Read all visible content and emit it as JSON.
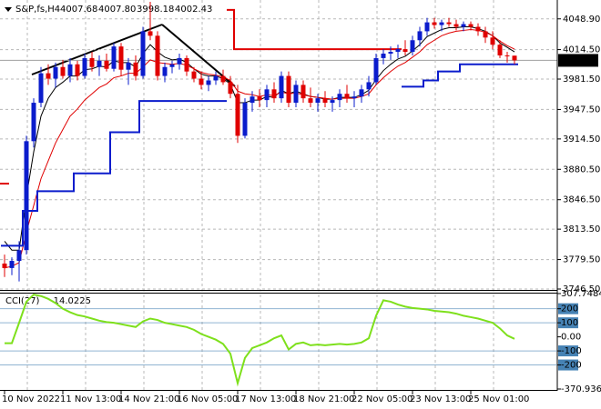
{
  "chart_data": [
    {
      "type": "candlestick",
      "title": "S&P,fs,H4",
      "ohlc_labels": [
        "4007.68",
        "4007.80",
        "3998.18",
        "4002.43"
      ],
      "categories": [
        "10 Nov 2022",
        null,
        null,
        null,
        null,
        null,
        null,
        null,
        "11 Nov 13:00",
        null,
        null,
        null,
        null,
        null,
        null,
        null,
        "14 Nov 21:00",
        null,
        null,
        null,
        null,
        null,
        null,
        null,
        "16 Nov 05:00",
        null,
        null,
        null,
        null,
        null,
        null,
        null,
        "17 Nov 13:00",
        null,
        null,
        null,
        null,
        null,
        null,
        null,
        "18 Nov 21:00",
        null,
        null,
        null,
        null,
        null,
        null,
        null,
        "22 Nov 05:00",
        null,
        null,
        null,
        null,
        null,
        null,
        null,
        "23 Nov 13:00",
        null,
        null,
        null,
        null,
        null,
        null,
        null,
        "25 Nov 01:00",
        null,
        null,
        null,
        null,
        null,
        null
      ],
      "open": [
        3775,
        3770,
        3778,
        3790,
        3912,
        3955,
        3988,
        3982,
        3995,
        3985,
        3998,
        3985,
        4005,
        3995,
        4002,
        3993,
        4018,
        3992,
        4000,
        3985,
        4035,
        4030,
        3985,
        3995,
        3998,
        4005,
        3990,
        3982,
        3975,
        3980,
        3985,
        3978,
        3965,
        3918,
        3955,
        3962,
        3958,
        3970,
        3960,
        3985,
        3955,
        3975,
        3960,
        3955,
        3960,
        3955,
        3958,
        3965,
        3960,
        3962,
        3970,
        3978,
        4005,
        4010,
        4012,
        4015,
        4012,
        4025,
        4035,
        4045,
        4042,
        4045,
        4043,
        4040,
        4043,
        4040,
        4035,
        4028,
        4020,
        4008,
        4007.68
      ],
      "high": [
        3785,
        3782,
        3800,
        3918,
        3960,
        3995,
        3998,
        4000,
        4003,
        4005,
        4002,
        4010,
        4012,
        4008,
        4010,
        4022,
        4022,
        4005,
        4008,
        4040,
        4068,
        4035,
        4000,
        4002,
        4010,
        4008,
        3995,
        3990,
        3985,
        3990,
        3992,
        3985,
        3975,
        3960,
        3968,
        3970,
        3975,
        3978,
        3990,
        3990,
        3980,
        3980,
        3972,
        3965,
        3968,
        3962,
        3970,
        3975,
        3968,
        3975,
        3985,
        4010,
        4015,
        4018,
        4020,
        4025,
        4030,
        4040,
        4050,
        4050,
        4048,
        4050,
        4048,
        4046,
        4046,
        4044,
        4040,
        4035,
        4025,
        4012,
        4007.8
      ],
      "low": [
        3760,
        3762,
        3755,
        3785,
        3905,
        3950,
        3975,
        3972,
        3982,
        3978,
        3980,
        3982,
        3990,
        3985,
        3990,
        3990,
        3985,
        3975,
        3980,
        3982,
        4025,
        3980,
        3978,
        3988,
        3992,
        3985,
        3978,
        3970,
        3968,
        3975,
        3975,
        3960,
        3910,
        3915,
        3945,
        3950,
        3950,
        3955,
        3955,
        3950,
        3950,
        3955,
        3950,
        3945,
        3950,
        3945,
        3950,
        3955,
        3950,
        3955,
        3962,
        3975,
        3998,
        4003,
        4005,
        4008,
        4008,
        4018,
        4030,
        4038,
        4035,
        4040,
        4036,
        4035,
        4036,
        4030,
        4022,
        4015,
        4005,
        4000,
        3998.18
      ],
      "close": [
        3770,
        3778,
        3790,
        3912,
        3955,
        3988,
        3982,
        3995,
        3985,
        3998,
        3985,
        4005,
        3995,
        4002,
        3993,
        4018,
        3992,
        4000,
        3985,
        4035,
        4030,
        3985,
        3995,
        3998,
        4005,
        3990,
        3982,
        3975,
        3980,
        3985,
        3978,
        3965,
        3918,
        3955,
        3962,
        3958,
        3970,
        3960,
        3985,
        3955,
        3975,
        3960,
        3955,
        3960,
        3955,
        3958,
        3965,
        3960,
        3962,
        3970,
        3978,
        4005,
        4010,
        4012,
        4015,
        4012,
        4025,
        4035,
        4045,
        4042,
        4045,
        4043,
        4040,
        4043,
        4040,
        4035,
        4028,
        4020,
        4008,
        4007.68,
        4002.43
      ],
      "up_color": "#0b1ccc",
      "down_color": "#e00000",
      "series": [
        {
          "color": "#000000",
          "width": 1,
          "values": [
            3800,
            3790,
            3790,
            3850,
            3900,
            3940,
            3960,
            3972,
            3978,
            3985,
            3985,
            3992,
            3993,
            3996,
            3995,
            4002,
            4000,
            4000,
            3995,
            4010,
            4020,
            4012,
            4006,
            4003,
            4004,
            4000,
            3993,
            3987,
            3985,
            3985,
            3982,
            3976,
            3955,
            3955,
            3958,
            3958,
            3962,
            3961,
            3969,
            3965,
            3968,
            3965,
            3962,
            3961,
            3959,
            3959,
            3961,
            3961,
            3961,
            3964,
            3969,
            3981,
            3991,
            3998,
            4004,
            4007,
            4013,
            4020,
            4029,
            4033,
            4037,
            4039,
            4039,
            4040,
            4040,
            4038,
            4035,
            4030,
            4022,
            4017,
            4012
          ]
        },
        {
          "color": "#e00000",
          "width": 1,
          "values": [
            3770,
            3772,
            3776,
            3810,
            3840,
            3870,
            3890,
            3910,
            3925,
            3940,
            3948,
            3958,
            3965,
            3972,
            3976,
            3983,
            3985,
            3988,
            3988,
            3995,
            4003,
            4000,
            3999,
            3998,
            3999,
            3997,
            3993,
            3989,
            3987,
            3986,
            3984,
            3980,
            3968,
            3965,
            3964,
            3962,
            3964,
            3963,
            3967,
            3965,
            3966,
            3964,
            3962,
            3961,
            3960,
            3959,
            3960,
            3960,
            3960,
            3962,
            3965,
            3975,
            3983,
            3990,
            3996,
            4000,
            4006,
            4012,
            4020,
            4025,
            4030,
            4033,
            4035,
            4036,
            4037,
            4036,
            4034,
            4030,
            4024,
            4019,
            4015
          ]
        },
        {
          "color": "#0b1ccc",
          "width": 2,
          "step": true,
          "values": [
            3795,
            3795,
            3795,
            3834,
            3834,
            3856,
            3856,
            3856,
            3856,
            3856,
            3876,
            3876,
            3876,
            3876,
            3876,
            3922,
            3922,
            3922,
            3922,
            3957,
            3957,
            3957,
            3957,
            3957,
            3957,
            3957,
            3957,
            3957,
            3957,
            3957,
            3957,
            null,
            null,
            null,
            null,
            null,
            null,
            null,
            null,
            null,
            null,
            null,
            null,
            null,
            null,
            null,
            null,
            null,
            null,
            null,
            null,
            null,
            null,
            null,
            null,
            3973,
            3973,
            3973,
            3980,
            3980,
            3990,
            3990,
            3990,
            3998,
            3998,
            3998,
            3998,
            3998,
            3998,
            3998,
            3998
          ]
        },
        {
          "color": "#e00000",
          "width": 2,
          "step": true,
          "values": [
            null,
            null,
            null,
            null,
            null,
            null,
            null,
            null,
            null,
            null,
            null,
            null,
            null,
            null,
            null,
            null,
            null,
            null,
            null,
            null,
            null,
            null,
            null,
            null,
            null,
            null,
            null,
            null,
            null,
            null,
            null,
            4059,
            4015,
            4015,
            4015,
            4015,
            4015,
            4015,
            4015,
            4015,
            4015,
            4015,
            4015,
            4015,
            4015,
            4015,
            4015,
            4015,
            4015,
            4015,
            4015,
            4015,
            4015,
            4015,
            4015,
            null,
            null,
            null,
            null,
            null,
            null,
            null,
            null,
            null,
            null,
            null,
            null,
            null,
            null,
            null,
            null
          ]
        }
      ],
      "ylim": [
        3746.5,
        4069
      ],
      "yticks": [
        {
          "value": 4048.9,
          "label": "4048.90"
        },
        {
          "value": 4014.5,
          "label": "4014.50"
        },
        {
          "value": 3981.5,
          "label": "3981.50"
        },
        {
          "value": 3947.5,
          "label": "3947.50"
        },
        {
          "value": 3914.5,
          "label": "3914.50"
        },
        {
          "value": 3880.5,
          "label": "3880.50"
        },
        {
          "value": 3846.5,
          "label": "3846.50"
        },
        {
          "value": 3813.5,
          "label": "3813.50"
        },
        {
          "value": 3779.5,
          "label": "3779.50"
        },
        {
          "value": 3746.5,
          "label": "3746.50"
        }
      ],
      "grid": true
    },
    {
      "type": "line",
      "title": "CCI(27)",
      "series": [
        {
          "color": "#7ee01c",
          "values": [
            -45,
            -45,
            100,
            250,
            300,
            290,
            270,
            240,
            200,
            175,
            155,
            145,
            130,
            115,
            105,
            100,
            90,
            80,
            70,
            110,
            130,
            120,
            100,
            90,
            80,
            70,
            50,
            20,
            0,
            -20,
            -50,
            -120,
            -330,
            -150,
            -80,
            -60,
            -40,
            -10,
            10,
            -90,
            -50,
            -40,
            -60,
            -55,
            -60,
            -55,
            -50,
            -55,
            -50,
            -40,
            -10,
            150,
            260,
            250,
            230,
            215,
            205,
            200,
            195,
            185,
            180,
            175,
            165,
            150,
            140,
            130,
            115,
            100,
            60,
            10,
            -14.0225
          ]
        }
      ],
      "ylim": [
        -370.9364,
        307.7484
      ],
      "yticks": [
        307.7484,
        200,
        100,
        {
          "value": 0,
          "label": "0.00"
        },
        -100,
        -200,
        -370.9364
      ],
      "levels_color": "#4682b4"
    }
  ]
}
